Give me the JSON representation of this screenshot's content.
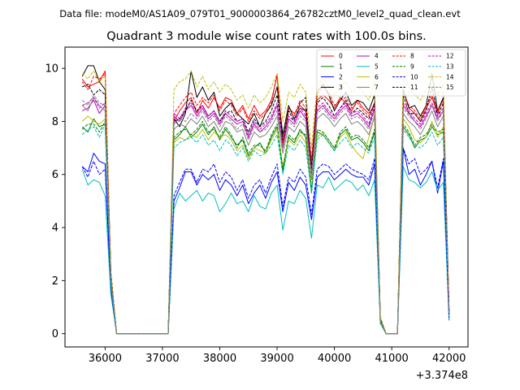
{
  "chart_data": {
    "type": "line",
    "suptitle": "Data file: modeM0/AS1A09_079T01_9000003864_26782cztM0_level2_quad_clean.evt",
    "title": "Quadrant 3 module wise count rates with 100.0s bins.",
    "xlabel": "",
    "ylabel": "",
    "x_offset_label": "+3.374e8",
    "xlim": [
      35300,
      42330
    ],
    "ylim": [
      -0.5,
      10.8
    ],
    "x_ticks": [
      36000,
      37000,
      38000,
      39000,
      40000,
      41000,
      42000
    ],
    "x_tick_labels": [
      "36000",
      "37000",
      "38000",
      "39000",
      "40000",
      "41000",
      "42000"
    ],
    "y_ticks": [
      0,
      2,
      4,
      6,
      8,
      10
    ],
    "y_tick_labels": [
      "0",
      "2",
      "4",
      "6",
      "8",
      "10"
    ],
    "legend_position": "upper right",
    "x": [
      35600,
      35700,
      35800,
      35900,
      36000,
      36100,
      36200,
      36300,
      36400,
      36500,
      36600,
      36700,
      36800,
      36900,
      37000,
      37100,
      37200,
      37300,
      37400,
      37500,
      37600,
      37700,
      37800,
      37900,
      38000,
      38100,
      38200,
      38300,
      38400,
      38500,
      38600,
      38700,
      38800,
      38900,
      39000,
      39100,
      39200,
      39300,
      39400,
      39500,
      39600,
      39700,
      39800,
      39900,
      40000,
      40100,
      40200,
      40300,
      40400,
      40500,
      40600,
      40700,
      40800,
      40900,
      41000,
      41100,
      41200,
      41300,
      41400,
      41500,
      41600,
      41700,
      41800,
      41900,
      42000
    ],
    "series": [
      {
        "name": "0",
        "color": "#ff0000",
        "dash": "solid",
        "values": [
          9.6,
          9.3,
          9.4,
          9.5,
          9.9,
          2.3,
          0.0,
          0.0,
          0.0,
          0.0,
          0.0,
          0.0,
          0.0,
          0.0,
          0.0,
          0.0,
          8.0,
          8.4,
          8.7,
          8.9,
          8.3,
          8.8,
          8.5,
          8.9,
          8.5,
          8.9,
          8.8,
          8.3,
          8.6,
          8.1,
          8.6,
          8.2,
          8.4,
          8.8,
          9.7,
          7.2,
          8.5,
          8.3,
          8.6,
          8.4,
          6.4,
          8.8,
          9.0,
          8.8,
          8.5,
          8.9,
          8.7,
          8.4,
          8.8,
          8.5,
          8.3,
          8.6,
          0.5,
          0.0,
          0.0,
          0.0,
          9.2,
          8.5,
          8.3,
          8.0,
          8.5,
          8.9,
          8.3,
          8.9,
          0.8
        ]
      },
      {
        "name": "1",
        "color": "#008000",
        "dash": "solid",
        "values": [
          7.8,
          7.6,
          8.1,
          7.8,
          7.9,
          2.0,
          0.0,
          0.0,
          0.0,
          0.0,
          0.0,
          0.0,
          0.0,
          0.0,
          0.0,
          0.0,
          7.3,
          7.5,
          7.8,
          7.4,
          7.6,
          7.9,
          7.5,
          7.8,
          7.3,
          7.7,
          7.4,
          7.1,
          7.3,
          6.7,
          7.0,
          7.2,
          6.8,
          7.4,
          7.8,
          6.1,
          7.4,
          7.2,
          7.7,
          7.4,
          5.3,
          7.6,
          7.5,
          7.2,
          6.9,
          7.5,
          7.7,
          7.3,
          7.4,
          7.2,
          6.9,
          7.6,
          0.4,
          0.0,
          0.0,
          0.0,
          7.8,
          7.5,
          7.0,
          7.3,
          7.4,
          7.8,
          7.5,
          7.6,
          0.7
        ]
      },
      {
        "name": "2",
        "color": "#0000ff",
        "dash": "solid",
        "values": [
          6.3,
          6.1,
          6.8,
          6.5,
          6.4,
          1.7,
          0.0,
          0.0,
          0.0,
          0.0,
          0.0,
          0.0,
          0.0,
          0.0,
          0.0,
          0.0,
          5.0,
          5.5,
          6.1,
          6.1,
          5.6,
          6.0,
          5.8,
          6.0,
          5.4,
          5.8,
          5.6,
          5.2,
          5.6,
          4.9,
          5.3,
          5.6,
          5.1,
          5.7,
          6.1,
          4.6,
          5.7,
          5.4,
          5.9,
          5.6,
          4.3,
          5.9,
          6.1,
          6.1,
          5.8,
          6.0,
          6.2,
          6.0,
          5.9,
          5.9,
          5.6,
          6.4,
          0.5,
          0.0,
          0.0,
          0.0,
          7.0,
          6.0,
          6.2,
          5.6,
          6.0,
          6.5,
          5.3,
          6.5,
          0.5
        ]
      },
      {
        "name": "3",
        "color": "#000000",
        "dash": "solid",
        "values": [
          9.7,
          10.1,
          10.1,
          9.5,
          9.2,
          2.3,
          0.0,
          0.0,
          0.0,
          0.0,
          0.0,
          0.0,
          0.0,
          0.0,
          0.0,
          0.0,
          8.1,
          7.8,
          8.3,
          9.9,
          8.9,
          9.3,
          8.8,
          9.1,
          8.2,
          8.5,
          8.7,
          8.3,
          8.1,
          7.9,
          8.3,
          7.8,
          8.3,
          8.6,
          9.3,
          7.5,
          8.6,
          8.1,
          8.5,
          8.4,
          6.2,
          9.1,
          9.4,
          9.0,
          8.4,
          8.8,
          9.1,
          8.6,
          8.8,
          8.7,
          8.4,
          9.0,
          0.6,
          0.0,
          0.0,
          0.0,
          9.2,
          8.5,
          8.6,
          8.2,
          8.6,
          9.8,
          8.4,
          8.9,
          0.9
        ]
      },
      {
        "name": "4",
        "color": "#bf00bf",
        "dash": "solid",
        "values": [
          8.4,
          8.5,
          8.8,
          8.3,
          8.6,
          2.1,
          0.0,
          0.0,
          0.0,
          0.0,
          0.0,
          0.0,
          0.0,
          0.0,
          0.0,
          0.0,
          8.2,
          8.0,
          8.4,
          8.6,
          8.2,
          8.5,
          8.1,
          8.3,
          7.9,
          8.3,
          8.1,
          7.9,
          8.0,
          7.4,
          7.9,
          7.6,
          7.8,
          8.1,
          8.6,
          7.0,
          8.1,
          7.9,
          8.4,
          8.1,
          6.0,
          8.4,
          8.6,
          8.3,
          8.1,
          8.4,
          8.6,
          8.2,
          8.3,
          8.1,
          7.8,
          8.5,
          0.5,
          0.0,
          0.0,
          0.0,
          8.6,
          8.3,
          8.0,
          7.8,
          8.2,
          8.6,
          8.1,
          8.4,
          0.8
        ]
      },
      {
        "name": "5",
        "color": "#00bfbf",
        "dash": "solid",
        "values": [
          6.2,
          5.6,
          5.8,
          5.7,
          5.2,
          1.5,
          0.0,
          0.0,
          0.0,
          0.0,
          0.0,
          0.0,
          0.0,
          0.0,
          0.0,
          0.0,
          4.7,
          5.3,
          5.0,
          5.2,
          5.4,
          5.0,
          5.3,
          5.2,
          4.6,
          4.9,
          5.3,
          4.9,
          5.0,
          4.6,
          5.2,
          4.8,
          4.7,
          5.3,
          5.6,
          3.9,
          5.0,
          4.9,
          5.4,
          5.1,
          3.6,
          5.6,
          5.5,
          5.9,
          5.4,
          5.6,
          5.8,
          5.7,
          5.4,
          5.6,
          5.2,
          5.8,
          0.4,
          0.0,
          0.0,
          0.0,
          6.3,
          5.8,
          5.7,
          5.5,
          5.7,
          6.1,
          5.4,
          5.7,
          0.5
        ]
      },
      {
        "name": "6",
        "color": "#bfbf00",
        "dash": "solid",
        "values": [
          8.0,
          8.2,
          8.0,
          7.9,
          8.1,
          2.0,
          0.0,
          0.0,
          0.0,
          0.0,
          0.0,
          0.0,
          0.0,
          0.0,
          0.0,
          0.0,
          7.2,
          7.4,
          7.3,
          7.5,
          7.4,
          7.7,
          7.3,
          7.6,
          7.4,
          7.5,
          7.3,
          6.9,
          7.1,
          6.6,
          7.0,
          6.9,
          6.8,
          7.3,
          7.7,
          6.3,
          7.3,
          7.1,
          7.5,
          7.2,
          5.5,
          7.4,
          7.6,
          7.3,
          7.0,
          7.4,
          7.6,
          7.1,
          6.8,
          6.6,
          7.4,
          8.2,
          0.4,
          0.0,
          0.0,
          0.0,
          8.1,
          7.8,
          7.3,
          7.2,
          7.4,
          8.0,
          7.4,
          7.8,
          0.7
        ]
      },
      {
        "name": "7",
        "color": "#808080",
        "dash": "solid",
        "values": [
          8.6,
          8.4,
          8.9,
          8.6,
          8.4,
          2.1,
          0.0,
          0.0,
          0.0,
          0.0,
          0.0,
          0.0,
          0.0,
          0.0,
          0.0,
          0.0,
          7.7,
          7.9,
          7.8,
          8.1,
          7.9,
          8.2,
          7.8,
          8.0,
          7.6,
          8.0,
          7.9,
          7.6,
          7.7,
          7.1,
          7.6,
          7.4,
          7.5,
          7.8,
          8.2,
          6.8,
          7.8,
          7.6,
          8.0,
          7.8,
          5.8,
          8.1,
          8.3,
          8.1,
          7.8,
          8.1,
          8.3,
          7.9,
          8.0,
          7.8,
          7.5,
          8.2,
          0.5,
          0.0,
          0.0,
          0.0,
          8.3,
          8.0,
          7.8,
          7.5,
          7.9,
          8.4,
          7.8,
          8.2,
          0.8
        ]
      },
      {
        "name": "8",
        "color": "#ff0000",
        "dash": "dashed",
        "values": [
          9.5,
          9.2,
          9.7,
          9.6,
          9.8,
          2.3,
          0.0,
          0.0,
          0.0,
          0.0,
          0.0,
          0.0,
          0.0,
          0.0,
          0.0,
          0.0,
          8.3,
          8.6,
          8.9,
          9.1,
          8.6,
          8.9,
          8.7,
          9.0,
          8.4,
          8.8,
          8.6,
          8.2,
          8.5,
          8.0,
          8.4,
          8.1,
          8.3,
          8.7,
          9.8,
          7.0,
          8.4,
          8.2,
          8.8,
          8.5,
          6.6,
          9.0,
          9.3,
          9.1,
          8.6,
          8.8,
          8.9,
          8.5,
          8.7,
          8.4,
          8.2,
          8.7,
          0.5,
          0.0,
          0.0,
          0.0,
          9.1,
          8.6,
          8.4,
          8.1,
          8.6,
          9.0,
          8.4,
          8.8,
          0.8
        ]
      },
      {
        "name": "9",
        "color": "#008000",
        "dash": "dashed",
        "values": [
          7.7,
          7.9,
          7.9,
          7.6,
          8.0,
          2.0,
          0.0,
          0.0,
          0.0,
          0.0,
          0.0,
          0.0,
          0.0,
          0.0,
          0.0,
          0.0,
          7.4,
          7.6,
          7.7,
          7.5,
          7.7,
          8.0,
          7.6,
          7.7,
          7.4,
          7.8,
          7.5,
          7.0,
          7.4,
          6.8,
          7.1,
          7.1,
          6.9,
          7.5,
          7.9,
          6.2,
          7.5,
          7.3,
          7.6,
          7.5,
          5.4,
          7.7,
          7.6,
          7.3,
          7.0,
          7.6,
          7.8,
          7.4,
          7.5,
          7.3,
          7.0,
          7.7,
          0.4,
          0.0,
          0.0,
          0.0,
          7.9,
          7.6,
          7.1,
          7.4,
          7.5,
          7.9,
          7.6,
          7.7,
          0.7
        ]
      },
      {
        "name": "10",
        "color": "#0000ff",
        "dash": "dashed",
        "values": [
          6.3,
          5.9,
          6.5,
          6.0,
          6.2,
          1.7,
          0.0,
          0.0,
          0.0,
          0.0,
          0.0,
          0.0,
          0.0,
          0.0,
          0.0,
          0.0,
          5.2,
          5.7,
          6.2,
          6.2,
          5.7,
          6.2,
          6.1,
          6.4,
          5.7,
          6.1,
          5.9,
          5.4,
          5.8,
          5.1,
          5.6,
          5.8,
          5.3,
          5.9,
          6.4,
          4.8,
          5.9,
          5.7,
          6.2,
          5.9,
          4.5,
          6.2,
          6.4,
          6.3,
          6.0,
          6.2,
          6.4,
          6.2,
          6.1,
          6.0,
          5.8,
          6.6,
          0.5,
          0.0,
          0.0,
          0.0,
          7.0,
          6.4,
          6.6,
          6.0,
          6.2,
          6.5,
          5.5,
          6.6,
          0.6
        ]
      },
      {
        "name": "11",
        "color": "#000000",
        "dash": "dashed",
        "values": [
          9.3,
          9.4,
          9.0,
          9.2,
          9.0,
          2.2,
          0.0,
          0.0,
          0.0,
          0.0,
          0.0,
          0.0,
          0.0,
          0.0,
          0.0,
          0.0,
          8.0,
          8.1,
          8.4,
          8.8,
          8.4,
          8.6,
          8.2,
          8.4,
          8.0,
          8.3,
          8.4,
          8.0,
          8.1,
          7.6,
          8.1,
          7.8,
          8.0,
          8.4,
          9.0,
          7.3,
          8.4,
          8.0,
          8.7,
          8.9,
          6.1,
          8.7,
          8.9,
          8.6,
          8.2,
          8.5,
          8.8,
          8.3,
          8.5,
          8.3,
          8.1,
          8.7,
          0.6,
          0.0,
          0.0,
          0.0,
          9.0,
          8.3,
          8.3,
          8.0,
          8.4,
          9.3,
          8.2,
          8.7,
          0.9
        ]
      },
      {
        "name": "12",
        "color": "#bf00bf",
        "dash": "dashed",
        "values": [
          8.6,
          8.7,
          8.9,
          8.5,
          8.7,
          2.1,
          0.0,
          0.0,
          0.0,
          0.0,
          0.0,
          0.0,
          0.0,
          0.0,
          0.0,
          0.0,
          8.3,
          8.1,
          8.5,
          8.7,
          8.3,
          8.6,
          8.2,
          8.4,
          8.0,
          8.4,
          8.2,
          8.0,
          8.1,
          7.5,
          8.0,
          7.7,
          7.9,
          8.2,
          8.7,
          7.1,
          8.2,
          8.0,
          8.5,
          8.2,
          6.1,
          8.5,
          8.7,
          8.4,
          8.2,
          8.5,
          8.7,
          8.3,
          8.4,
          8.2,
          7.9,
          8.6,
          0.5,
          0.0,
          0.0,
          0.0,
          8.7,
          8.4,
          8.1,
          7.9,
          8.3,
          8.7,
          8.2,
          8.5,
          0.8
        ]
      },
      {
        "name": "13",
        "color": "#00bfbf",
        "dash": "dashed",
        "values": [
          7.5,
          7.7,
          7.8,
          7.4,
          7.9,
          1.9,
          0.0,
          0.0,
          0.0,
          0.0,
          0.0,
          0.0,
          0.0,
          0.0,
          0.0,
          0.0,
          7.0,
          7.2,
          7.3,
          7.4,
          7.2,
          7.5,
          7.1,
          7.3,
          6.9,
          7.3,
          7.1,
          6.7,
          7.0,
          6.5,
          6.9,
          6.7,
          6.8,
          7.1,
          7.5,
          6.0,
          7.1,
          6.9,
          7.3,
          7.0,
          5.3,
          7.3,
          7.5,
          7.2,
          6.9,
          7.2,
          7.4,
          7.0,
          7.2,
          7.0,
          6.8,
          7.4,
          0.4,
          0.0,
          0.0,
          0.0,
          7.7,
          7.4,
          7.1,
          7.0,
          7.2,
          7.6,
          7.1,
          7.4,
          0.7
        ]
      },
      {
        "name": "14",
        "color": "#bfbf00",
        "dash": "dashed",
        "values": [
          9.8,
          9.6,
          9.9,
          9.5,
          9.7,
          2.3,
          0.0,
          0.0,
          0.0,
          0.0,
          0.0,
          0.0,
          0.0,
          0.0,
          0.0,
          0.0,
          9.2,
          9.5,
          9.6,
          9.9,
          9.3,
          9.7,
          9.2,
          9.5,
          9.1,
          9.4,
          9.2,
          8.8,
          9.0,
          8.5,
          9.0,
          8.7,
          8.9,
          9.3,
          9.8,
          8.0,
          9.1,
          8.9,
          9.4,
          9.1,
          7.0,
          9.4,
          9.6,
          9.3,
          9.0,
          9.3,
          9.5,
          9.1,
          9.3,
          9.1,
          8.8,
          9.5,
          0.6,
          0.0,
          0.0,
          0.0,
          9.7,
          9.3,
          9.0,
          8.8,
          9.2,
          9.6,
          9.0,
          9.4,
          0.9
        ]
      },
      {
        "name": "15",
        "color": "#808080",
        "dash": "dashed",
        "values": [
          8.8,
          8.6,
          9.0,
          8.7,
          8.6,
          2.1,
          0.0,
          0.0,
          0.0,
          0.0,
          0.0,
          0.0,
          0.0,
          0.0,
          0.0,
          0.0,
          7.9,
          8.1,
          8.0,
          8.3,
          8.1,
          8.4,
          8.0,
          8.2,
          7.8,
          8.2,
          8.0,
          7.7,
          7.9,
          7.3,
          7.8,
          7.6,
          7.7,
          8.0,
          8.4,
          7.0,
          8.0,
          7.8,
          8.2,
          8.0,
          6.0,
          8.3,
          8.5,
          8.2,
          8.0,
          8.3,
          8.5,
          8.1,
          8.2,
          8.0,
          7.7,
          8.4,
          0.5,
          0.0,
          0.0,
          0.0,
          8.5,
          8.2,
          8.0,
          7.7,
          8.1,
          8.6,
          8.0,
          8.4,
          0.8
        ]
      }
    ]
  }
}
